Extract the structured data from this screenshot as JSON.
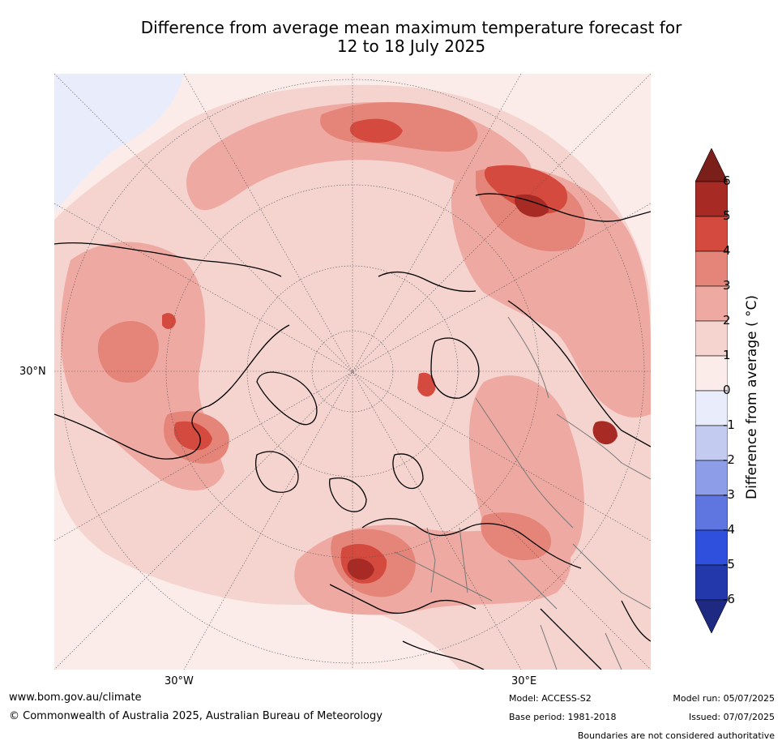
{
  "title": {
    "line1": "Difference from average mean maximum temperature forecast for",
    "line2": "12 to 18 July 2025"
  },
  "map": {
    "projection": "north-polar-stereographic",
    "lon_labels": [
      "30°W",
      "30°E"
    ],
    "lat_labels": [
      "30°N"
    ]
  },
  "colorbar": {
    "label": "Difference from average (°C)",
    "label_display": "Difference from average ( °C)",
    "ticks": [
      "6",
      "5",
      "4",
      "3",
      "2",
      "1",
      "0",
      "-1",
      "-2",
      "-3",
      "-4",
      "-5",
      "-6"
    ],
    "colors": {
      "gt6": "#7a1f1a",
      "5_6": "#a72a24",
      "4_5": "#d44a3f",
      "3_4": "#e58579",
      "2_3": "#eeaaa2",
      "1_2": "#f5d4cf",
      "0_1": "#fbece9",
      "m1_0": "#e8ecfb",
      "m2_m1": "#c3cbf1",
      "m3_m2": "#8d9de8",
      "m4_m3": "#5f75e0",
      "m5_m4": "#2f4fdd",
      "m6_m5": "#2338ab",
      "lt_m6": "#1e2a82"
    }
  },
  "footer": {
    "url": "www.bom.gov.au/climate",
    "copyright": "© Commonwealth of Australia 2025, Australian Bureau of Meteorology",
    "model": "Model: ACCESS-S2",
    "base_period": "Base period: 1981-2018",
    "model_run": "Model run: 05/07/2025",
    "issued": "Issued: 07/07/2025",
    "disclaimer": "Boundaries are not considered authoritative"
  }
}
